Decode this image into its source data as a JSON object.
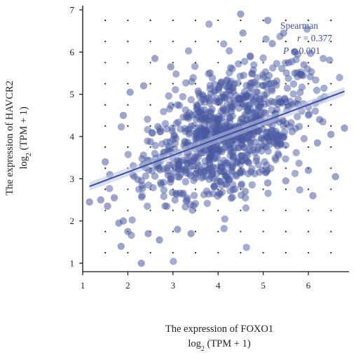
{
  "chart_data": {
    "type": "scatter",
    "xlabel_line1": "The expression of FOXO1",
    "xlabel_line2": "log",
    "xlabel_sub": "2",
    "xlabel_unit": " (TPM + 1)",
    "ylabel_line1": "The expression of HAVCR2",
    "ylabel_line2": "log",
    "ylabel_sub": "2",
    "ylabel_unit": " (TPM + 1)",
    "xlim": [
      1,
      6.9
    ],
    "ylim": [
      0.8,
      7.1
    ],
    "x_ticks": [
      1,
      2,
      3,
      4,
      5,
      6
    ],
    "y_ticks": [
      1,
      2,
      3,
      4,
      5,
      6,
      7
    ],
    "grid": "dotted",
    "point_color": "#4a5aa2",
    "line_color": "#3d4f9a",
    "regression": {
      "x0": 1.15,
      "y0": 2.82,
      "x1": 6.8,
      "y1": 5.07
    },
    "annotation": {
      "method": "Spearman",
      "r_label": "r",
      "r_value": " = 0.377",
      "p_label": "P",
      "p_value": " < 0.001"
    },
    "outliers": [
      [
        1.15,
        2.45
      ],
      [
        1.4,
        2.5
      ],
      [
        1.5,
        3.4
      ],
      [
        1.6,
        3.1
      ],
      [
        1.7,
        2.55
      ],
      [
        1.8,
        1.95
      ],
      [
        1.85,
        1.4
      ],
      [
        1.9,
        2.0
      ],
      [
        2.0,
        1.75
      ],
      [
        2.3,
        1.0
      ],
      [
        2.45,
        1.7
      ],
      [
        2.7,
        1.55
      ],
      [
        1.9,
        4.5
      ],
      [
        2.05,
        5.05
      ],
      [
        2.35,
        5.2
      ],
      [
        2.6,
        5.85
      ],
      [
        2.95,
        5.65
      ],
      [
        3.1,
        1.8
      ],
      [
        3.4,
        1.7
      ],
      [
        4.55,
        6.45
      ],
      [
        4.5,
        6.9
      ],
      [
        5.1,
        6.75
      ],
      [
        5.45,
        6.45
      ],
      [
        5.2,
        6.2
      ],
      [
        5.7,
        5.5
      ],
      [
        6.0,
        4.7
      ],
      [
        6.25,
        4.4
      ],
      [
        6.5,
        4.05
      ],
      [
        6.8,
        4.2
      ],
      [
        6.2,
        3.85
      ],
      [
        6.6,
        3.05
      ],
      [
        6.1,
        2.6
      ],
      [
        5.5,
        2.95
      ],
      [
        5.1,
        2.9
      ],
      [
        4.6,
        2.7
      ],
      [
        6.0,
        3.2
      ],
      [
        5.9,
        5.7
      ],
      [
        5.7,
        6.0
      ],
      [
        1.55,
        2.35
      ]
    ],
    "cluster": {
      "center_x": 4.15,
      "center_y": 4.05,
      "spread_x": 0.85,
      "spread_y": 0.75,
      "count": 900,
      "seed": 17
    }
  }
}
